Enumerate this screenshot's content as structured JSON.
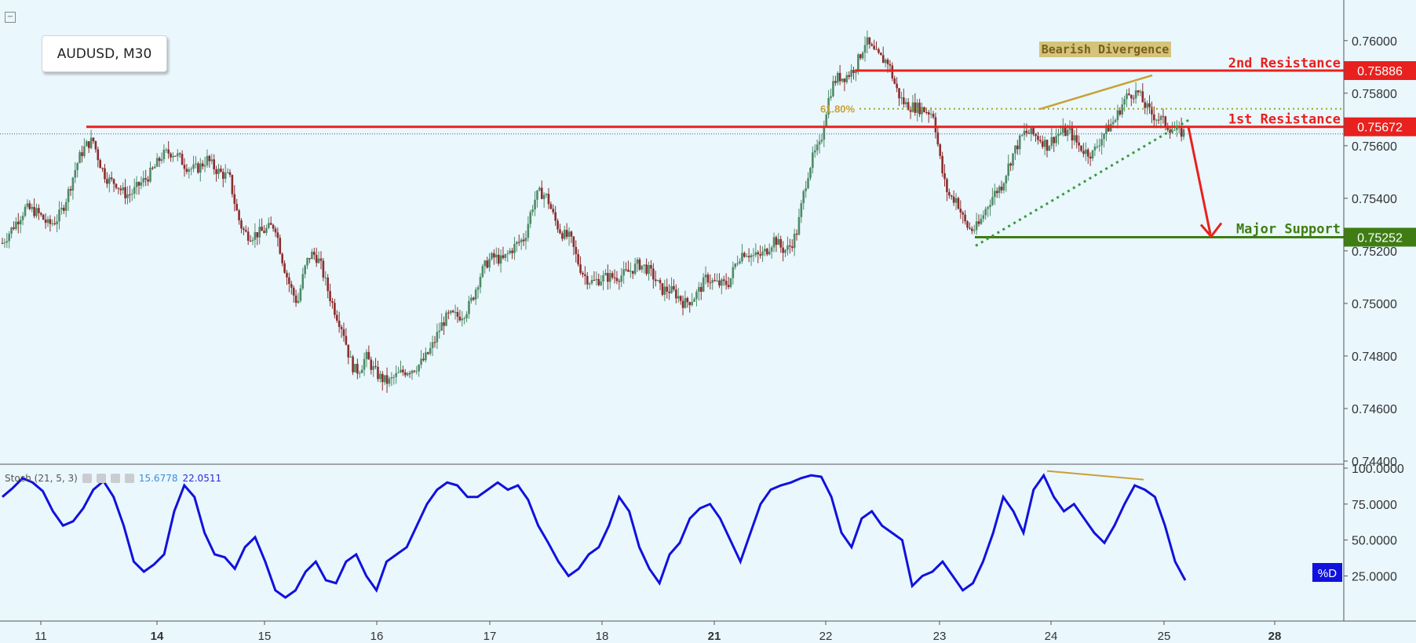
{
  "symbol_label": "AUDUSD, M30",
  "colors": {
    "resistance": "#e8211e",
    "support": "#3f7d14",
    "divergence": "#c9a037",
    "trend": "#3a9a3a",
    "stoch": "#1111dd",
    "up_candle": "#4e8b67",
    "down_candle": "#8b2d2d"
  },
  "icons": {
    "collapse": "minus-square-icon",
    "flag": "flag-icon"
  },
  "annotations": {
    "bearish_divergence": "Bearish Divergence",
    "second_resistance": "2nd Resistance",
    "first_resistance": "1st Resistance",
    "major_support": "Major Support",
    "fib_618": "61.80%"
  },
  "stoch_legend": {
    "name": "Stoch (21, 5, 3)",
    "k_value": "15.6778",
    "d_value": "22.0511",
    "d_tag": "%D"
  },
  "chart_data": [
    {
      "type": "candlestick",
      "title": "AUDUSD, M30",
      "xlabel": "",
      "ylabel": "",
      "ylim": [
        0.744,
        0.7608
      ],
      "y_ticks": [
        "0.76000",
        "0.75800",
        "0.75600",
        "0.75400",
        "0.75200",
        "0.75000",
        "0.74800",
        "0.74600",
        "0.74400"
      ],
      "x_ticks": [
        "11",
        "14",
        "15",
        "16",
        "17",
        "18",
        "21",
        "22",
        "23",
        "24",
        "25",
        "28"
      ],
      "price_path": [
        [
          0.7523,
          0.7523
        ],
        [
          0.7536,
          0.754
        ],
        [
          0.753,
          0.752
        ],
        [
          0.7545,
          0.7555
        ],
        [
          0.7562,
          0.755
        ],
        [
          0.7546,
          0.7536
        ],
        [
          0.7545,
          0.7542
        ],
        [
          0.7556,
          0.7563
        ],
        [
          0.7553,
          0.7546
        ],
        [
          0.7555,
          0.7552
        ],
        [
          0.7548,
          0.753
        ],
        [
          0.7526,
          0.7525
        ],
        [
          0.753,
          0.752
        ],
        [
          0.75,
          0.7525
        ],
        [
          0.7515,
          0.751
        ],
        [
          0.749,
          0.7465
        ],
        [
          0.748,
          0.7475
        ],
        [
          0.747,
          0.7472
        ],
        [
          0.7475,
          0.747
        ],
        [
          0.7485,
          0.7495
        ],
        [
          0.7495,
          0.7485
        ],
        [
          0.751,
          0.752
        ],
        [
          0.7516,
          0.7518
        ],
        [
          0.7525,
          0.7545
        ],
        [
          0.754,
          0.753
        ],
        [
          0.7525,
          0.7515
        ],
        [
          0.7508,
          0.751
        ],
        [
          0.751,
          0.7508
        ],
        [
          0.7515,
          0.752
        ],
        [
          0.7505,
          0.751
        ],
        [
          0.75,
          0.7495
        ],
        [
          0.751,
          0.7506
        ],
        [
          0.7508,
          0.7522
        ],
        [
          0.7518,
          0.7512
        ],
        [
          0.7525,
          0.751
        ],
        [
          0.7528,
          0.7545
        ],
        [
          0.756,
          0.7582
        ],
        [
          0.7586,
          0.7578
        ],
        [
          0.76,
          0.7596
        ],
        [
          0.7592,
          0.758
        ],
        [
          0.7575,
          0.7576
        ],
        [
          0.7572,
          0.7545
        ],
        [
          0.754,
          0.7525
        ],
        [
          0.753,
          0.7535
        ],
        [
          0.7545,
          0.755
        ],
        [
          0.7565,
          0.7568
        ],
        [
          0.756,
          0.7565
        ],
        [
          0.7565,
          0.756
        ],
        [
          0.7557,
          0.756
        ],
        [
          0.757,
          0.7579
        ],
        [
          0.758,
          0.7575
        ],
        [
          0.757,
          0.7567
        ],
        [
          0.7565,
          0.7566
        ]
      ],
      "levels": [
        {
          "name": "2nd Resistance",
          "value": "0.75886",
          "y": 0.75886
        },
        {
          "name": "1st Resistance",
          "value": "0.75672",
          "y": 0.75672
        },
        {
          "name": "Major Support",
          "value": "0.75252",
          "y": 0.75252
        }
      ]
    },
    {
      "type": "line",
      "title": "Stoch (21, 5, 3)",
      "ylim": [
        0,
        100
      ],
      "y_ticks": [
        "100.0000",
        "75.0000",
        "50.0000",
        "25.0000"
      ],
      "series": [
        {
          "name": "%D",
          "values": [
            80,
            86,
            93,
            90,
            84,
            70,
            60,
            63,
            72,
            85,
            91,
            80,
            60,
            35,
            28,
            33,
            40,
            70,
            88,
            80,
            55,
            40,
            38,
            30,
            45,
            52,
            35,
            15,
            10,
            15,
            28,
            35,
            22,
            20,
            35,
            40,
            25,
            15,
            35,
            40,
            45,
            60,
            75,
            85,
            90,
            88,
            80,
            80,
            85,
            90,
            85,
            88,
            78,
            60,
            48,
            35,
            25,
            30,
            40,
            45,
            60,
            80,
            70,
            45,
            30,
            20,
            40,
            48,
            65,
            72,
            75,
            65,
            50,
            35,
            55,
            75,
            85,
            88,
            90,
            93,
            95,
            94,
            80,
            55,
            45,
            65,
            70,
            60,
            55,
            50,
            18,
            25,
            28,
            35,
            25,
            15,
            20,
            35,
            55,
            80,
            70,
            55,
            85,
            95,
            80,
            70,
            75,
            65,
            55,
            48,
            60,
            75,
            88,
            85,
            80,
            60,
            35,
            22
          ]
        }
      ]
    }
  ]
}
